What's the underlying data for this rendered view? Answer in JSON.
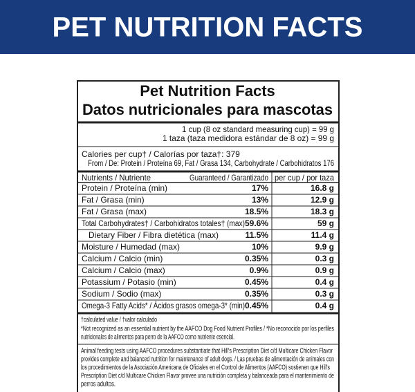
{
  "header": {
    "title": "PET NUTRITION FACTS"
  },
  "label": {
    "title": "Pet Nutrition Facts",
    "subtitle": "Datos nutricionales para mascotas",
    "serving": [
      "1 cup (8 oz standard measuring cup) = 99 g",
      "1 taza (taza medidora estándar de 8 oz) = 99 g"
    ],
    "calories": "Calories per cup† / Calorías por taza†: 379",
    "from": "From / De:  Protein / Proteína 69, Fat / Grasa 134, Carbohydrate / Carbohidratos 176"
  },
  "table": {
    "headers": [
      "Nutrients / Nutriente",
      "Guaranteed / Garantizado",
      "per cup / por taza"
    ],
    "rows": [
      [
        "Protein / Proteína (min)",
        "17%",
        "16.8 g"
      ],
      [
        "Fat / Grasa (min)",
        "13%",
        "12.9 g"
      ],
      [
        "Fat / Grasa (max)",
        "18.5%",
        "18.3 g"
      ],
      [
        "Total Carbohydrates† / Carbohidratos totales† (max)",
        "59.6%",
        "59 g"
      ],
      [
        "Dietary Fiber / Fibra dietética (max)",
        "11.5%",
        "11.4 g"
      ],
      [
        "Moisture / Humedad (max)",
        "10%",
        "9.9 g"
      ],
      [
        "Calcium / Calcio (min)",
        "0.35%",
        "0.3 g"
      ],
      [
        "Calcium / Calcio (max)",
        "0.9%",
        "0.9 g"
      ],
      [
        "Potassium / Potasio (min)",
        "0.45%",
        "0.4 g"
      ],
      [
        "Sodium / Sodio (max)",
        "0.35%",
        "0.3 g"
      ],
      [
        "Omega-3 Fatty Acids* / Ácidos grasos omega-3* (min)",
        "0.45%",
        "0.4 g"
      ]
    ]
  },
  "footnotes": [
    "†calculated value / †valor calculado",
    "*Not recognized as an essential nutrient by the AAFCO Dog Food Nutrient Profiles / *No reconocido por los perfiles",
    "nutricionales de alimentos para perro de la AAFCO como nutriente esencial."
  ],
  "feeding": [
    "Animal feeding tests using AAFCO procedures substantiate that Hill's Prescription Diet c/d Multicare Chicken Flavor",
    "provides complete and balanced nutrition for maintenance of adult dogs. / Las pruebas de alimentación de animales con",
    "los procedimientos de la Asociación Americana de Oficiales en el Control de Alimentos (AAFCO) sostienen que Hill's",
    "Prescription Diet c/d Multicare Chicken Flavor provee una nutrición completa y balanceada para el mantenimiento de",
    "perros adultos."
  ]
}
